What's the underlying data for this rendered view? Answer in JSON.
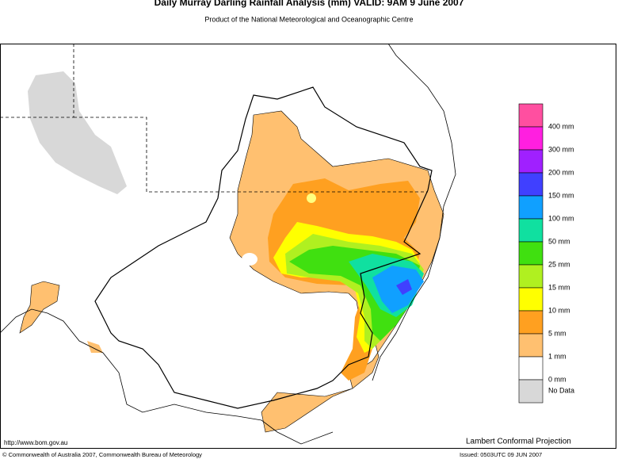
{
  "header": {
    "title": "Daily Murray Darling Rainfall Analysis (mm)  VALID: 9AM  9 June 2007",
    "subtitle": "Product of the National Meteorological and Oceanographic Centre"
  },
  "legend": {
    "colors": [
      "#ff4fa0",
      "#ff1fe0",
      "#a020ff",
      "#4040ff",
      "#10a0ff",
      "#10e0a0",
      "#40e010",
      "#b0f020",
      "#ffff00",
      "#ffa020",
      "#ffc070",
      "#ffffff",
      "#d8d8d8"
    ],
    "labels": [
      "400 mm",
      "300 mm",
      "200 mm",
      "150 mm",
      "100 mm",
      "50 mm",
      "25 mm",
      "15 mm",
      "10 mm",
      "5 mm",
      "1 mm",
      "0 mm"
    ],
    "no_data": "No Data"
  },
  "footer": {
    "url": "http://www.bom.gov.au",
    "projection": "Lambert Conformal Projection",
    "copyright": "© Commonwealth of Australia 2007, Commonwealth Bureau of Meteorology",
    "issued": "Issued: 0503UTC 09 JUN 2007"
  }
}
